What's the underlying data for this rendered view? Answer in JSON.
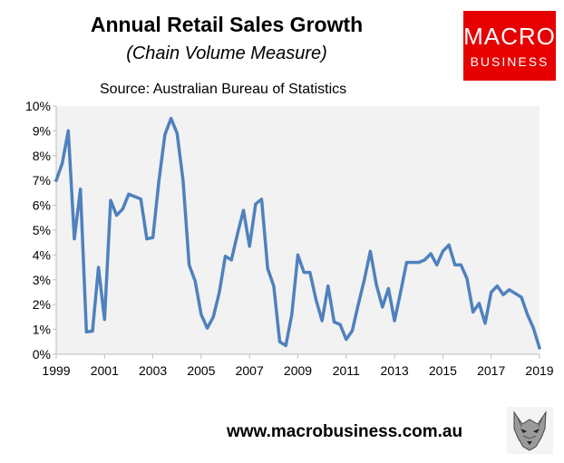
{
  "header": {
    "title": "Annual Retail Sales Growth",
    "subtitle": "(Chain Volume Measure)",
    "source": "Source: Australian Bureau of Statistics"
  },
  "logo": {
    "line1": "MACRO",
    "line2": "BUSINESS",
    "color": "#e60000"
  },
  "footer": {
    "website": "www.macrobusiness.com.au"
  },
  "chart_data": {
    "type": "line",
    "title": "Annual Retail Sales Growth",
    "subtitle": "(Chain Volume Measure)",
    "xlabel": "",
    "ylabel": "",
    "xlim": [
      1999,
      2019
    ],
    "ylim": [
      0,
      10
    ],
    "grid": false,
    "legend": "none",
    "x_tick_labels": [
      "1999",
      "2001",
      "2003",
      "2005",
      "2007",
      "2009",
      "2011",
      "2013",
      "2015",
      "2017",
      "2019"
    ],
    "y_tick_labels": [
      "0%",
      "1%",
      "2%",
      "3%",
      "4%",
      "5%",
      "6%",
      "7%",
      "8%",
      "9%",
      "10%"
    ],
    "line_color": "#4f81bd",
    "plot_background": "#f2f2f2",
    "series": [
      {
        "x": [
          1999.0,
          1999.25,
          1999.5,
          1999.75,
          2000.0,
          2000.25,
          2000.5,
          2000.75,
          2001.0,
          2001.25,
          2001.5,
          2001.75,
          2002.0,
          2002.25,
          2002.5,
          2002.75,
          2003.0,
          2003.25,
          2003.5,
          2003.75,
          2004.0,
          2004.25,
          2004.5,
          2004.75,
          2005.0,
          2005.25,
          2005.5,
          2005.75,
          2006.0,
          2006.25,
          2006.5,
          2006.75,
          2007.0,
          2007.25,
          2007.5,
          2007.75,
          2008.0,
          2008.25,
          2008.5,
          2008.75,
          2009.0,
          2009.25,
          2009.5,
          2009.75,
          2010.0,
          2010.25,
          2010.5,
          2010.75,
          2011.0,
          2011.25,
          2011.5,
          2011.75,
          2012.0,
          2012.25,
          2012.5,
          2012.75,
          2013.0,
          2013.25,
          2013.5,
          2013.75,
          2014.0,
          2014.25,
          2014.5,
          2014.75,
          2015.0,
          2015.25,
          2015.5,
          2015.75,
          2016.0,
          2016.25,
          2016.5,
          2016.75,
          2017.0,
          2017.25,
          2017.5,
          2017.75,
          2018.0,
          2018.25,
          2018.5,
          2018.75,
          2019.0
        ],
        "values": [
          7.0,
          7.7,
          9.0,
          4.65,
          6.65,
          0.9,
          0.93,
          3.5,
          1.4,
          6.2,
          5.6,
          5.85,
          6.45,
          6.35,
          6.25,
          4.65,
          4.7,
          7.0,
          8.85,
          9.5,
          8.9,
          7.0,
          3.6,
          2.95,
          1.6,
          1.05,
          1.5,
          2.5,
          3.95,
          3.8,
          4.85,
          5.8,
          4.35,
          6.05,
          6.25,
          3.45,
          2.75,
          0.5,
          0.35,
          1.6,
          4.0,
          3.3,
          3.3,
          2.2,
          1.35,
          2.75,
          1.3,
          1.2,
          0.6,
          0.95,
          2.0,
          3.0,
          4.15,
          2.8,
          1.9,
          2.65,
          1.35,
          2.5,
          3.7,
          3.7,
          3.7,
          3.8,
          4.05,
          3.6,
          4.15,
          4.4,
          3.6,
          3.6,
          3.05,
          1.7,
          2.05,
          1.25,
          2.5,
          2.75,
          2.4,
          2.6,
          2.45,
          2.3,
          1.6,
          1.05,
          0.25
        ]
      }
    ]
  }
}
